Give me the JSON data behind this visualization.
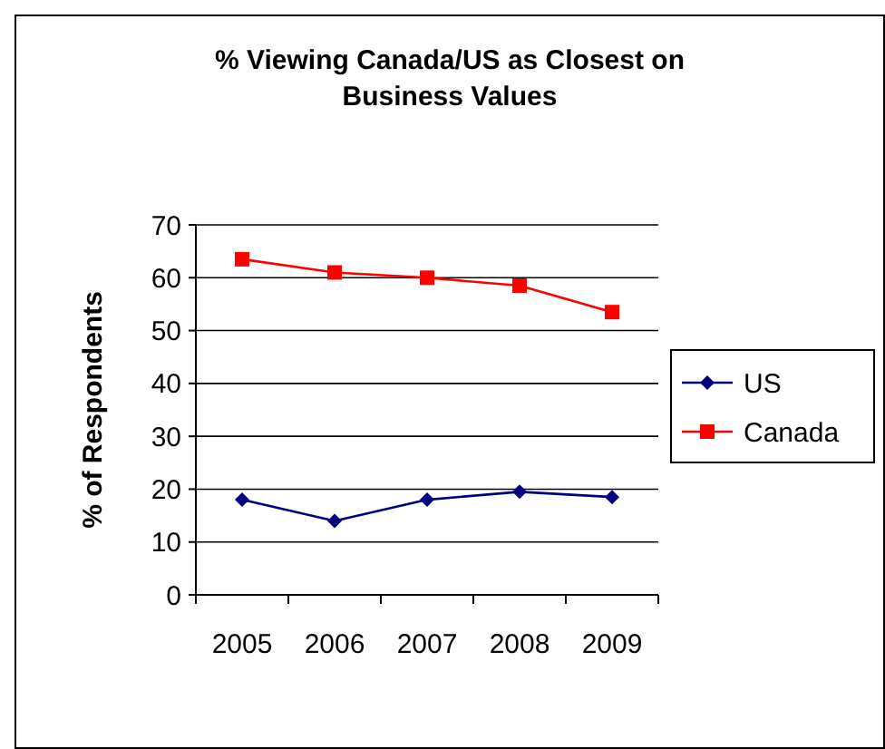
{
  "chart_data": {
    "type": "line",
    "title": "% Viewing Canada/US as Closest on Business Values",
    "ylabel": "% of Respondents",
    "categories": [
      "2005",
      "2006",
      "2007",
      "2008",
      "2009"
    ],
    "series": [
      {
        "name": "US",
        "color": "#000080",
        "values": [
          18,
          14,
          18,
          19.5,
          18.5
        ],
        "marker": "diamond"
      },
      {
        "name": "Canada",
        "color": "#ff0000",
        "values": [
          63.5,
          61,
          60,
          58.5,
          53.5
        ],
        "marker": "square"
      }
    ],
    "ylim": [
      0,
      70
    ],
    "yticks": [
      0,
      10,
      20,
      30,
      40,
      50,
      60,
      70
    ],
    "grid": "y",
    "legend": "right"
  }
}
